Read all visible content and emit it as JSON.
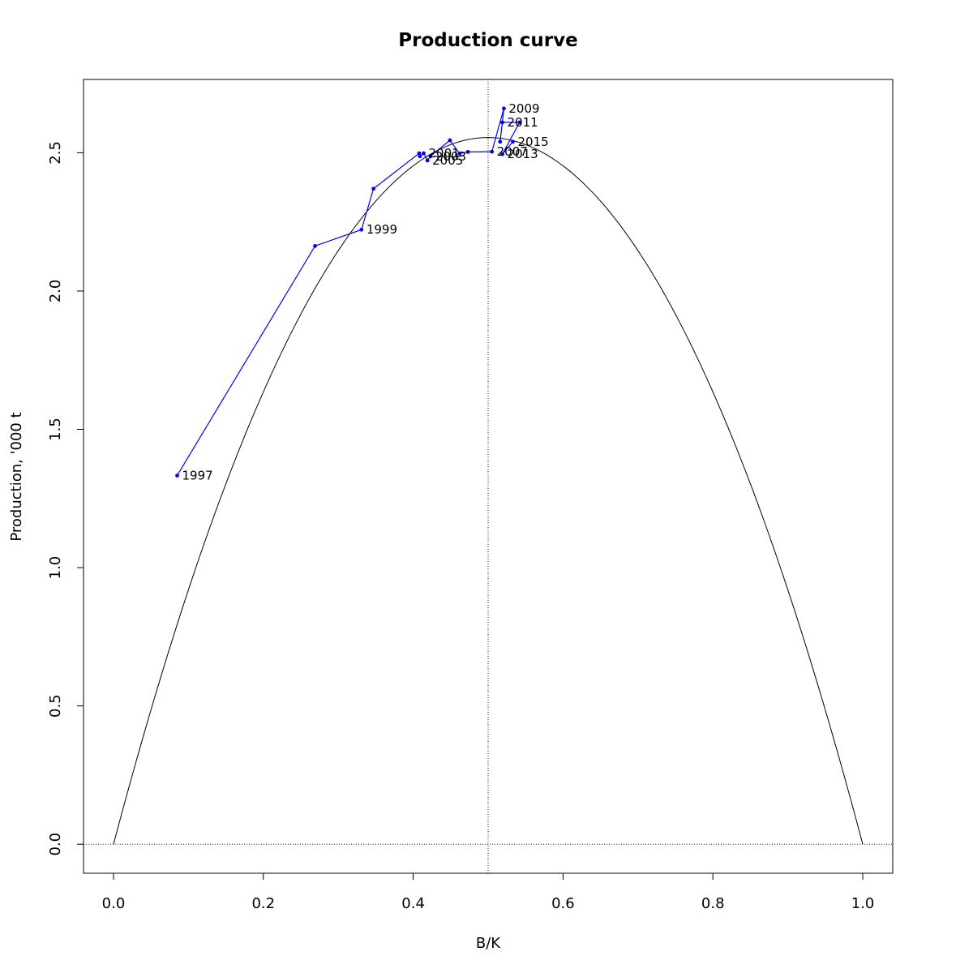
{
  "chart_data": {
    "type": "line",
    "title": "Production curve",
    "xlabel": "B/K",
    "ylabel": "Production, '000 t",
    "xlim": [
      -0.04,
      1.04
    ],
    "ylim": [
      -0.105,
      2.765
    ],
    "x_ticks": [
      "0.0",
      "0.2",
      "0.4",
      "0.6",
      "0.8",
      "1.0"
    ],
    "y_ticks": [
      "0.0",
      "0.5",
      "1.0",
      "1.5",
      "2.0",
      "2.5"
    ],
    "grid": false,
    "legend": "none",
    "reference_lines": {
      "vertical_x": 0.5,
      "horizontal_y": 0.0,
      "style": "dotted"
    },
    "curve": {
      "type": "parabola",
      "color": "#000000",
      "msy": 2.555,
      "x_range": [
        0,
        1
      ]
    },
    "series": [
      {
        "color": "#0000ff",
        "x": [
          0.085,
          0.269,
          0.331,
          0.347,
          0.408,
          0.409,
          0.414,
          0.419,
          0.423,
          0.449,
          0.462,
          0.473,
          0.505,
          0.521,
          0.516,
          0.519,
          0.542,
          0.519,
          0.533
        ],
        "y": [
          1.333,
          2.163,
          2.222,
          2.37,
          2.498,
          2.487,
          2.498,
          2.472,
          2.487,
          2.545,
          2.497,
          2.503,
          2.504,
          2.66,
          2.54,
          2.61,
          2.61,
          2.495,
          2.54
        ]
      }
    ],
    "point_labels": [
      {
        "text": "1997",
        "i": 0
      },
      {
        "text": "1999",
        "i": 2
      },
      {
        "text": "2001",
        "i": 6
      },
      {
        "text": "2003",
        "i": 8
      },
      {
        "text": "2005",
        "i": 7
      },
      {
        "text": "2007",
        "i": 12
      },
      {
        "text": "2009",
        "i": 13
      },
      {
        "text": "2011",
        "i": 15
      },
      {
        "text": "2013",
        "i": 17
      },
      {
        "text": "2015",
        "i": 18
      }
    ]
  }
}
